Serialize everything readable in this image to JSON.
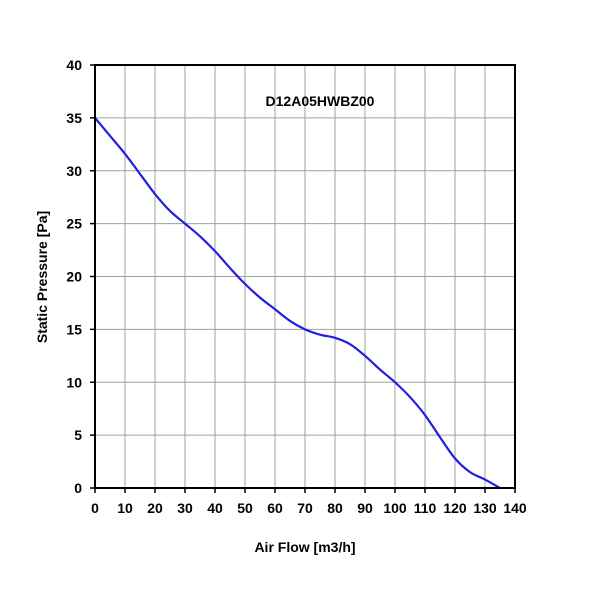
{
  "chart_data": {
    "type": "line",
    "title": "D12A05HWBZ00",
    "xlabel": "Air Flow [m3/h]",
    "ylabel": "Static Pressure [Pa]",
    "xlim": [
      0,
      140
    ],
    "ylim": [
      0,
      40
    ],
    "xticks": [
      0,
      10,
      20,
      30,
      40,
      50,
      60,
      70,
      80,
      90,
      100,
      110,
      120,
      130,
      140
    ],
    "yticks": [
      0,
      5,
      10,
      15,
      20,
      25,
      30,
      35,
      40
    ],
    "grid": true,
    "legend": "none",
    "series": [
      {
        "color": "#1f1fe0",
        "x": [
          0,
          5,
          10,
          15,
          20,
          25,
          30,
          35,
          40,
          45,
          50,
          55,
          60,
          65,
          70,
          75,
          80,
          85,
          90,
          95,
          100,
          105,
          110,
          115,
          120,
          125,
          130,
          135
        ],
        "y": [
          35.0,
          33.3,
          31.6,
          29.7,
          27.8,
          26.2,
          25.0,
          23.8,
          22.4,
          20.8,
          19.3,
          18.0,
          16.9,
          15.8,
          15.0,
          14.5,
          14.2,
          13.6,
          12.5,
          11.2,
          10.0,
          8.6,
          6.9,
          4.8,
          2.8,
          1.5,
          0.8,
          0.0
        ]
      }
    ]
  }
}
